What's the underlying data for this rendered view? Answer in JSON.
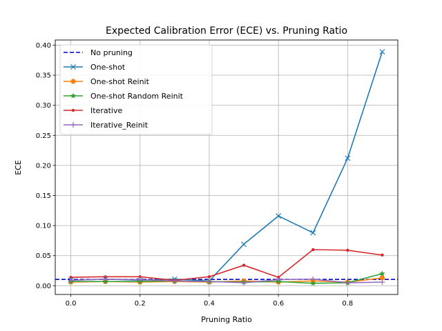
{
  "chart_data": {
    "type": "line",
    "title": "Expected Calibration Error (ECE) vs. Pruning Ratio",
    "xlabel": "Pruning Ratio",
    "ylabel": "ECE",
    "xlim": [
      -0.045,
      0.945
    ],
    "ylim": [
      -0.0145,
      0.4085
    ],
    "xticks": [
      0.0,
      0.2,
      0.4,
      0.6,
      0.8
    ],
    "xtick_labels": [
      "0.0",
      "0.2",
      "0.4",
      "0.6",
      "0.8"
    ],
    "yticks": [
      0.0,
      0.05,
      0.1,
      0.15,
      0.2,
      0.25,
      0.3,
      0.35,
      0.4
    ],
    "ytick_labels": [
      "0.00",
      "0.05",
      "0.10",
      "0.15",
      "0.20",
      "0.25",
      "0.30",
      "0.35",
      "0.40"
    ],
    "grid": true,
    "legend_position": "upper-left",
    "baseline": {
      "name": "No pruning",
      "value": 0.0105,
      "color": "#0000cc",
      "style": "dashed"
    },
    "x": [
      0.0,
      0.1,
      0.2,
      0.3,
      0.4,
      0.5,
      0.6,
      0.7,
      0.8,
      0.9
    ],
    "series": [
      {
        "name": "One-shot",
        "color": "#1f77b4",
        "marker": "x",
        "values": [
          0.009,
          0.011,
          0.009,
          0.011,
          0.008,
          0.069,
          0.116,
          0.088,
          0.212,
          0.389
        ]
      },
      {
        "name": "One-shot Reinit",
        "color": "#ff7f0e",
        "marker": "circle",
        "values": [
          0.006,
          0.007,
          0.006,
          0.007,
          0.006,
          0.008,
          0.006,
          0.008,
          0.006,
          0.013
        ]
      },
      {
        "name": "One-shot Random Reinit",
        "color": "#2ca02c",
        "marker": "star",
        "values": [
          0.007,
          0.007,
          0.007,
          0.008,
          0.007,
          0.006,
          0.007,
          0.004,
          0.005,
          0.02
        ]
      },
      {
        "name": "Iterative",
        "color": "#d62728",
        "marker": "dot",
        "values": [
          0.014,
          0.015,
          0.015,
          0.009,
          0.015,
          0.034,
          0.014,
          0.06,
          0.059,
          0.051
        ]
      },
      {
        "name": "Iterative_Reinit",
        "color": "#9467bd",
        "marker": "plus",
        "values": [
          0.009,
          0.011,
          0.01,
          0.008,
          0.007,
          0.005,
          0.01,
          0.011,
          0.005,
          0.006
        ]
      }
    ]
  }
}
